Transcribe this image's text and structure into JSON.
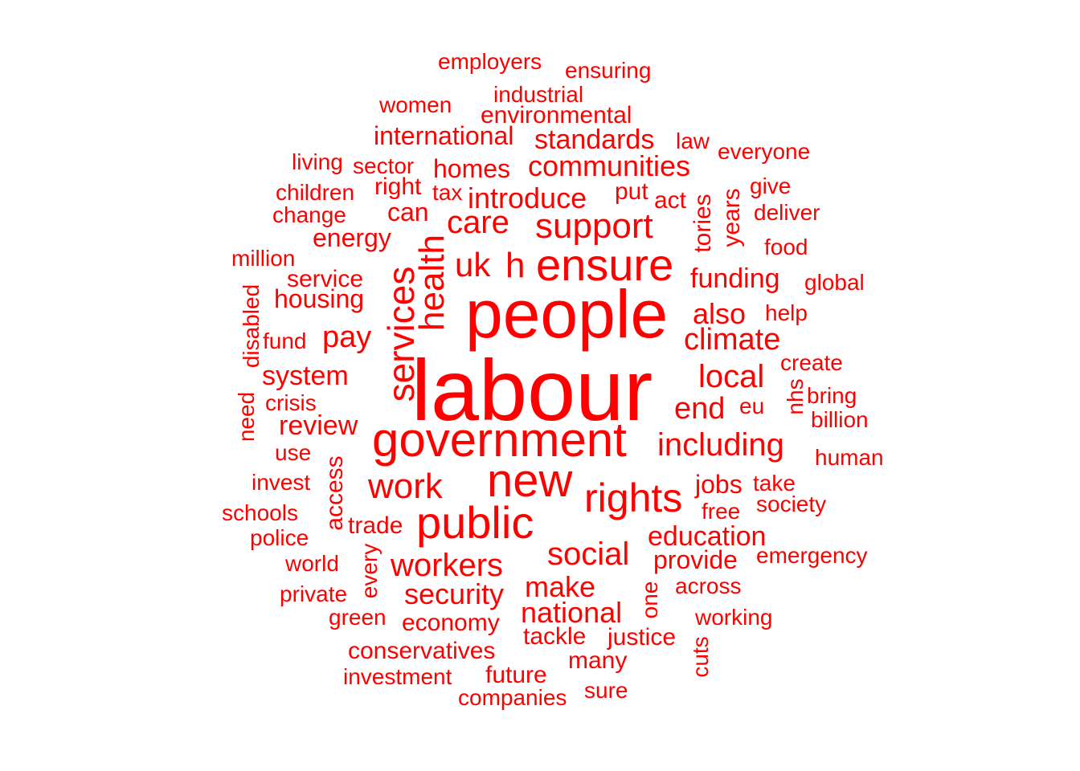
{
  "cloud": {
    "color": "#ff0000",
    "words": [
      {
        "text": "labour",
        "size": 5
      },
      {
        "text": "people",
        "size": 4
      },
      {
        "text": "government",
        "size": 3
      },
      {
        "text": "new",
        "size": 3
      },
      {
        "text": "public",
        "size": 3
      },
      {
        "text": "ensure",
        "size": 3
      },
      {
        "text": "services",
        "size": 3
      },
      {
        "text": "health",
        "size": 3
      },
      {
        "text": "rights",
        "size": 3
      },
      {
        "text": "support",
        "size": 2
      },
      {
        "text": "work",
        "size": 2
      },
      {
        "text": "social",
        "size": 2
      },
      {
        "text": "workers",
        "size": 2
      },
      {
        "text": "including",
        "size": 2
      },
      {
        "text": "uk",
        "size": 2
      },
      {
        "text": "h",
        "size": 2
      },
      {
        "text": "care",
        "size": 2
      },
      {
        "text": "local",
        "size": 2
      },
      {
        "text": "end",
        "size": 2
      },
      {
        "text": "climate",
        "size": 2
      },
      {
        "text": "make",
        "size": 2
      },
      {
        "text": "national",
        "size": 2
      },
      {
        "text": "security",
        "size": 2
      },
      {
        "text": "introduce",
        "size": 2
      },
      {
        "text": "communities",
        "size": 2
      },
      {
        "text": "also",
        "size": 2
      },
      {
        "text": "education",
        "size": 2
      },
      {
        "text": "pay",
        "size": 2
      },
      {
        "text": "system",
        "size": 2
      },
      {
        "text": "funding",
        "size": 2
      },
      {
        "text": "review",
        "size": 2
      },
      {
        "text": "jobs",
        "size": 2
      },
      {
        "text": "standards",
        "size": 2
      },
      {
        "text": "international",
        "size": 2
      },
      {
        "text": "homes",
        "size": 2
      },
      {
        "text": "can",
        "size": 2
      },
      {
        "text": "energy",
        "size": 2
      },
      {
        "text": "housing",
        "size": 2
      },
      {
        "text": "provide",
        "size": 2
      },
      {
        "text": "economy",
        "size": 2
      },
      {
        "text": "trade",
        "size": 2
      },
      {
        "text": "right",
        "size": 2
      },
      {
        "text": "environmental",
        "size": 2
      },
      {
        "text": "industrial",
        "size": 1
      },
      {
        "text": "service",
        "size": 1
      },
      {
        "text": "access",
        "size": 1
      },
      {
        "text": "conservatives",
        "size": 1
      },
      {
        "text": "tackle",
        "size": 1
      },
      {
        "text": "justice",
        "size": 1
      },
      {
        "text": "future",
        "size": 1
      },
      {
        "text": "many",
        "size": 1
      },
      {
        "text": "tories",
        "size": 1
      },
      {
        "text": "years",
        "size": 1
      },
      {
        "text": "act",
        "size": 1
      },
      {
        "text": "put",
        "size": 1
      },
      {
        "text": "tax",
        "size": 1
      },
      {
        "text": "sector",
        "size": 1
      },
      {
        "text": "change",
        "size": 1
      },
      {
        "text": "children",
        "size": 1
      },
      {
        "text": "living",
        "size": 1
      },
      {
        "text": "women",
        "size": 1
      },
      {
        "text": "employers",
        "size": 1
      },
      {
        "text": "ensuring",
        "size": 1
      },
      {
        "text": "law",
        "size": 1
      },
      {
        "text": "everyone",
        "size": 1
      },
      {
        "text": "give",
        "size": 1
      },
      {
        "text": "deliver",
        "size": 1
      },
      {
        "text": "food",
        "size": 1
      },
      {
        "text": "global",
        "size": 1
      },
      {
        "text": "help",
        "size": 1
      },
      {
        "text": "create",
        "size": 1
      },
      {
        "text": "nhs",
        "size": 1
      },
      {
        "text": "bring",
        "size": 1
      },
      {
        "text": "eu",
        "size": 1
      },
      {
        "text": "billion",
        "size": 1
      },
      {
        "text": "human",
        "size": 1
      },
      {
        "text": "take",
        "size": 1
      },
      {
        "text": "society",
        "size": 1
      },
      {
        "text": "free",
        "size": 1
      },
      {
        "text": "emergency",
        "size": 1
      },
      {
        "text": "across",
        "size": 1
      },
      {
        "text": "working",
        "size": 1
      },
      {
        "text": "cuts",
        "size": 1
      },
      {
        "text": "one",
        "size": 1
      },
      {
        "text": "sure",
        "size": 1
      },
      {
        "text": "companies",
        "size": 1
      },
      {
        "text": "investment",
        "size": 1
      },
      {
        "text": "green",
        "size": 1
      },
      {
        "text": "private",
        "size": 1
      },
      {
        "text": "every",
        "size": 1
      },
      {
        "text": "world",
        "size": 1
      },
      {
        "text": "police",
        "size": 1
      },
      {
        "text": "schools",
        "size": 1
      },
      {
        "text": "invest",
        "size": 1
      },
      {
        "text": "use",
        "size": 1
      },
      {
        "text": "need",
        "size": 1
      },
      {
        "text": "crisis",
        "size": 1
      },
      {
        "text": "fund",
        "size": 1
      },
      {
        "text": "disabled",
        "size": 1
      },
      {
        "text": "million",
        "size": 1
      }
    ]
  }
}
